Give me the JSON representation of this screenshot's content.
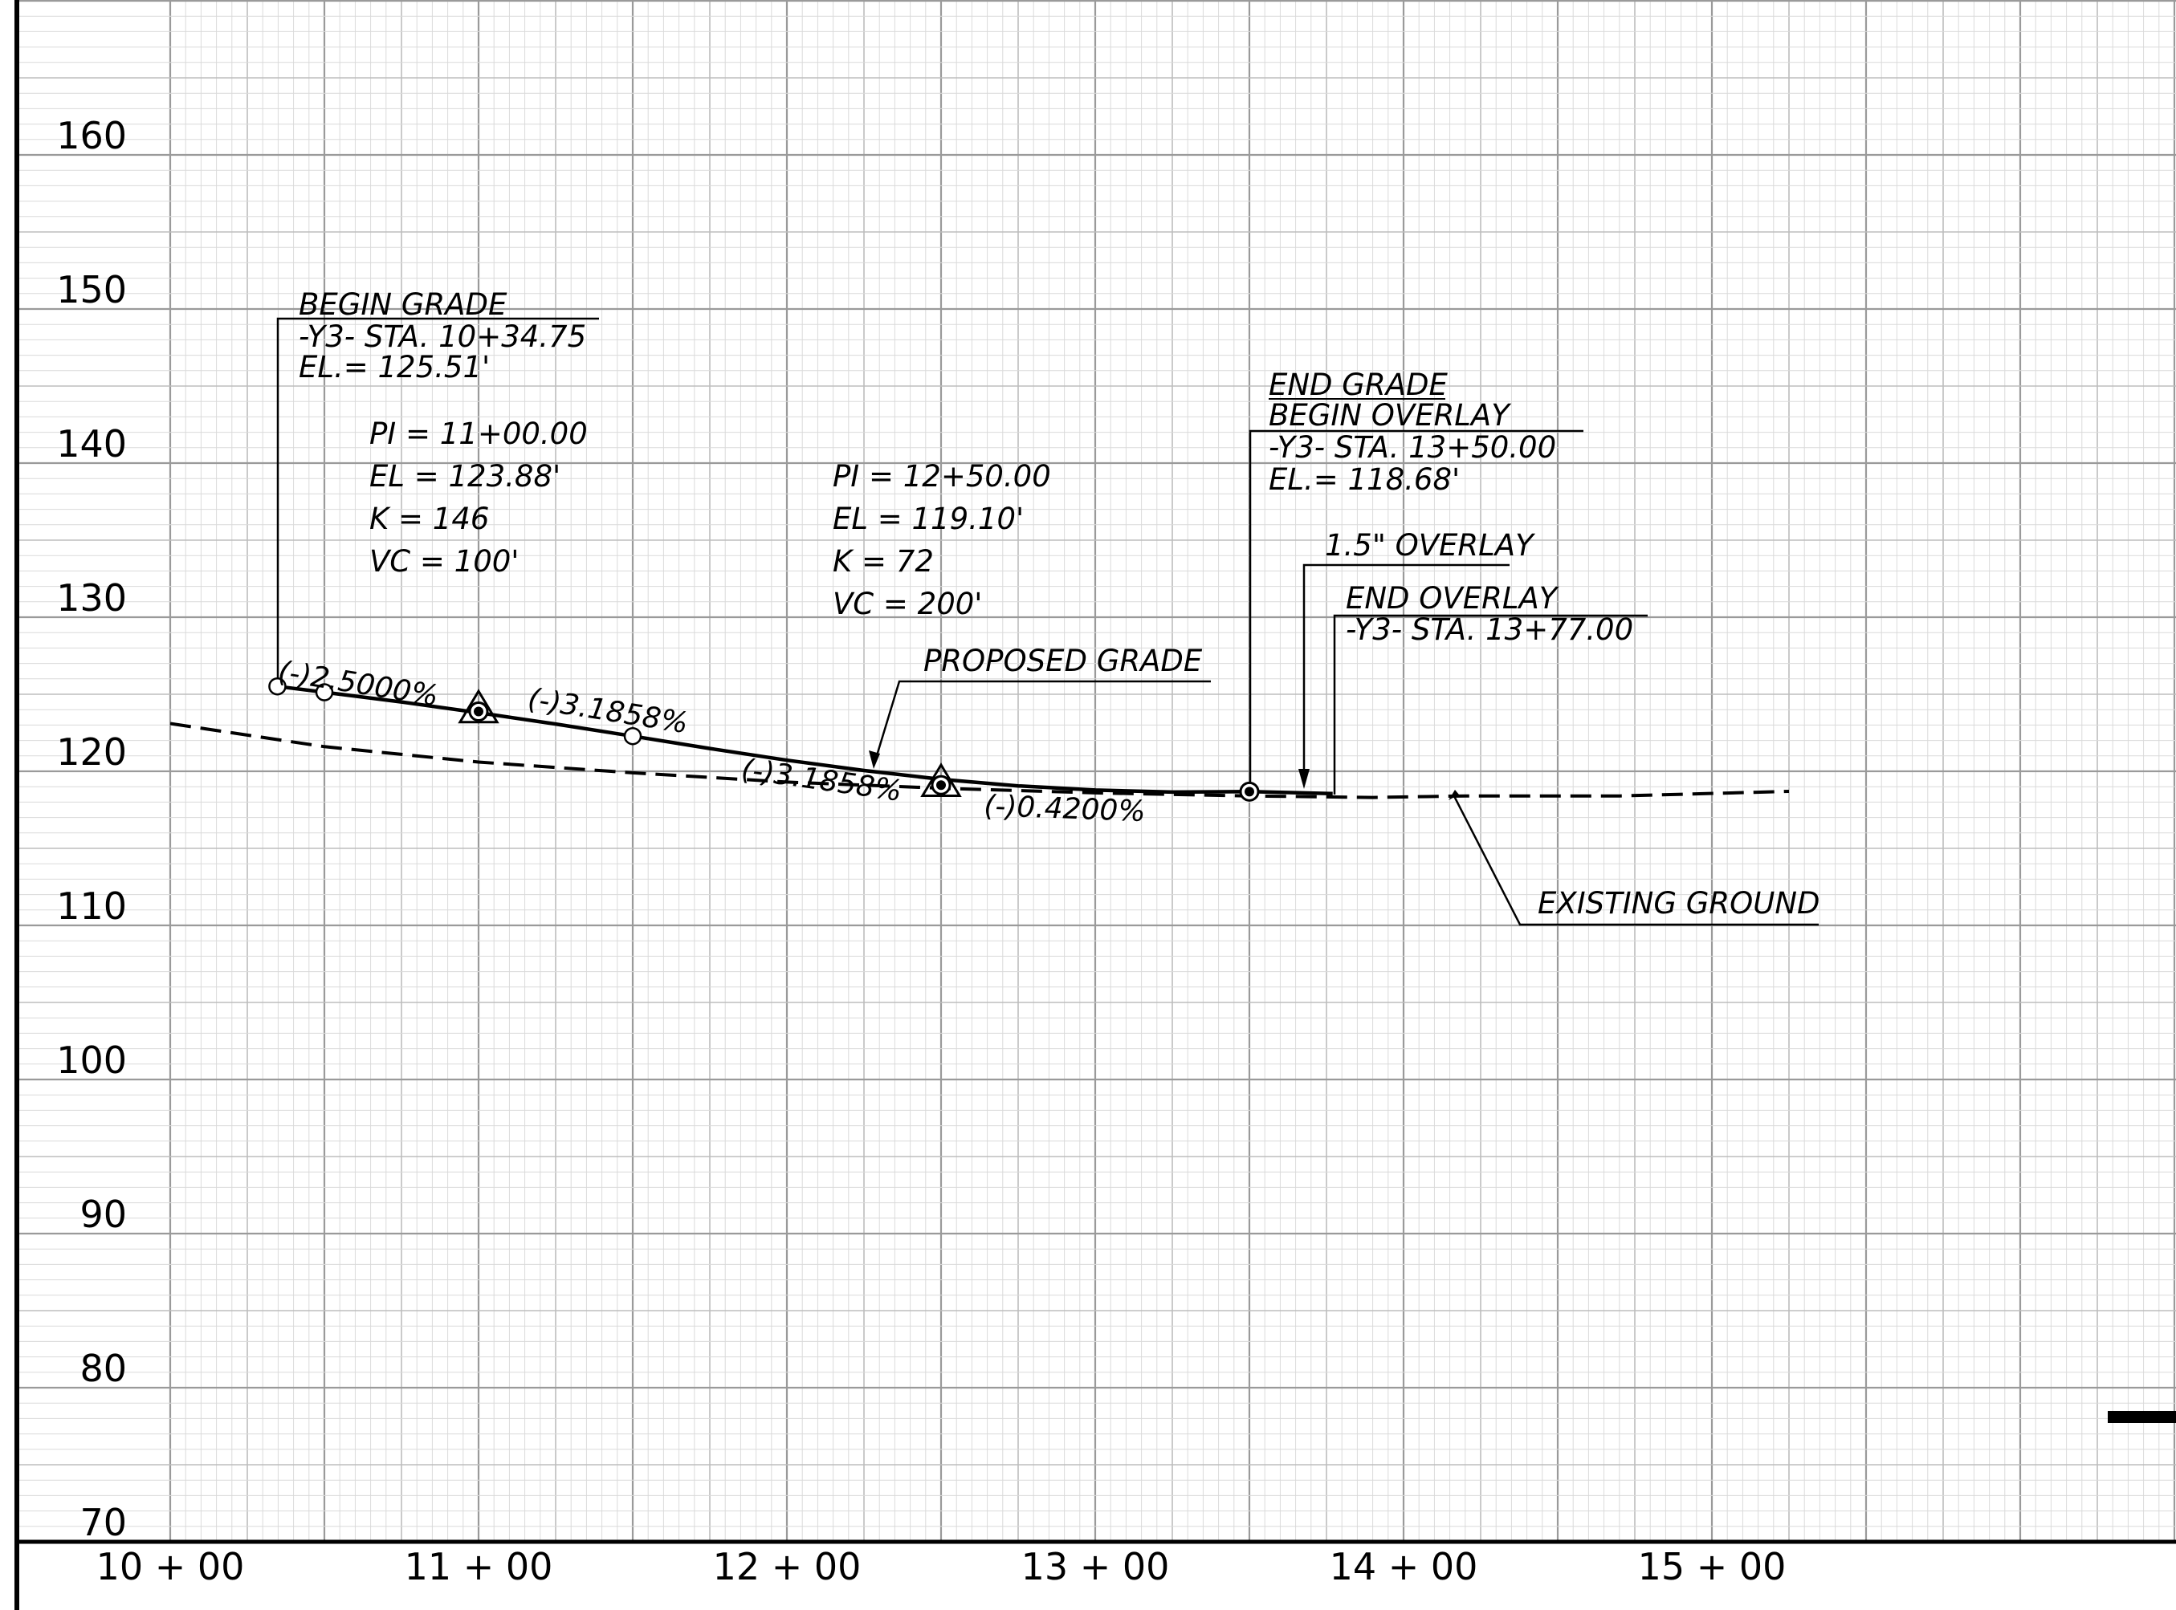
{
  "chart_data": {
    "type": "line",
    "xlabel": "",
    "ylabel": "",
    "xlim": [
      1000,
      1600
    ],
    "ylim": [
      70,
      170
    ],
    "grid": true,
    "y_ticks": [
      70,
      80,
      90,
      100,
      110,
      120,
      130,
      140,
      150,
      160
    ],
    "y_tick_labels": [
      "70",
      "80",
      "90",
      "100",
      "110",
      "120",
      "130",
      "140",
      "150",
      "160"
    ],
    "x_ticks": [
      1000,
      1100,
      1200,
      1300,
      1400,
      1500
    ],
    "x_tick_labels": [
      "10 + 00",
      "11 + 00",
      "12 + 00",
      "13 + 00",
      "14 + 00",
      "15 + 00"
    ],
    "series": [
      {
        "style": "solid",
        "points": [
          [
            1034.75,
            125.51
          ],
          [
            1050,
            125.13
          ],
          [
            1075,
            124.5
          ],
          [
            1100,
            123.8
          ],
          [
            1125,
            123.07
          ],
          [
            1150,
            122.28
          ],
          [
            1175,
            121.48
          ],
          [
            1200,
            120.72
          ],
          [
            1225,
            120.05
          ],
          [
            1250,
            119.48
          ],
          [
            1275,
            119.05
          ],
          [
            1300,
            118.78
          ],
          [
            1325,
            118.65
          ],
          [
            1350,
            118.68
          ],
          [
            1377,
            118.55
          ]
        ]
      },
      {
        "style": "dashed",
        "points": [
          [
            1000,
            123.1
          ],
          [
            1050,
            121.6
          ],
          [
            1100,
            120.6
          ],
          [
            1150,
            119.9
          ],
          [
            1200,
            119.3
          ],
          [
            1250,
            118.9
          ],
          [
            1300,
            118.6
          ],
          [
            1350,
            118.4
          ],
          [
            1390,
            118.3
          ],
          [
            1420,
            118.4
          ],
          [
            1470,
            118.4
          ],
          [
            1525,
            118.7
          ]
        ]
      }
    ],
    "markers": [
      {
        "shape": "open-circle",
        "x": 1034.75,
        "y": 125.51
      },
      {
        "shape": "open-circle",
        "x": 1050,
        "y": 125.13
      },
      {
        "shape": "triangle-dot",
        "x": 1100,
        "y": 123.88
      },
      {
        "shape": "open-circle",
        "x": 1150,
        "y": 122.28
      },
      {
        "shape": "triangle-dot",
        "x": 1250,
        "y": 119.1
      },
      {
        "shape": "circle-dot",
        "x": 1350,
        "y": 118.68
      }
    ],
    "annotations": [
      {
        "lines": [
          "BEGIN GRADE",
          "-Y3-  STA. 10+34.75",
          "EL.= 125.51'"
        ]
      },
      {
        "lines": [
          "PI = 11+00.00",
          "EL  =  123.88'",
          "K  =  146",
          "VC  =  100'"
        ]
      },
      {
        "lines": [
          "PI = 12+50.00",
          "EL  =  119.10'",
          "K  =  72",
          "VC  =  200'"
        ]
      },
      {
        "lines": [
          "END GRADE",
          "BEGIN OVERLAY",
          "-Y3-  STA. 13+50.00",
          "EL.= 118.68'"
        ]
      },
      {
        "lines": [
          "1.5\" OVERLAY"
        ]
      },
      {
        "lines": [
          "END OVERLAY",
          "-Y3-  STA. 13+77.00"
        ]
      },
      {
        "lines": [
          "PROPOSED GRADE"
        ]
      },
      {
        "lines": [
          "EXISTING GROUND"
        ]
      }
    ],
    "slope_labels": [
      "(-)2.5000%",
      "(-)3.1858%",
      "(-)3.1858%",
      "(-)0.4200%"
    ]
  }
}
